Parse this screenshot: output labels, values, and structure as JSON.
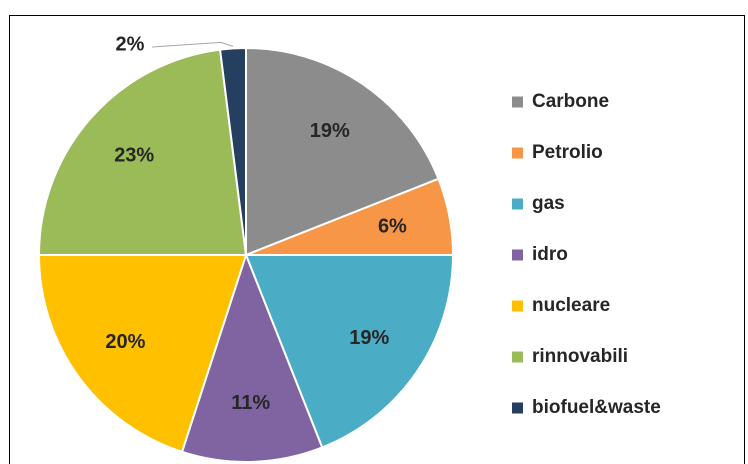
{
  "chart_data": {
    "type": "pie",
    "categories": [
      "Carbone",
      "Petrolio",
      "gas",
      "idro",
      "nucleare",
      "rinnovabili",
      "biofuel&waste"
    ],
    "values": [
      19,
      6,
      19,
      11,
      20,
      23,
      2
    ],
    "value_labels": [
      "19%",
      "6%",
      "19%",
      "11%",
      "20%",
      "23%",
      "2%"
    ],
    "colors": [
      "#8c8c8c",
      "#f79646",
      "#4bacc6",
      "#8064a2",
      "#ffc000",
      "#9bbb59",
      "#243f60"
    ],
    "legend": "right"
  }
}
